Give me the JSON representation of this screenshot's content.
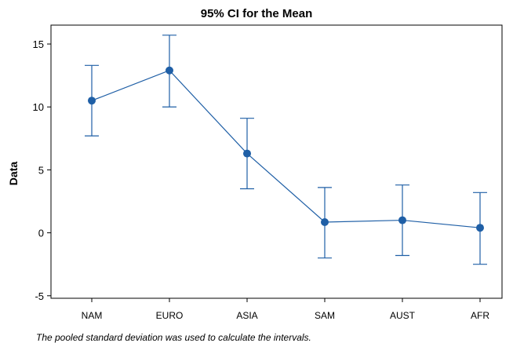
{
  "chart_data": {
    "type": "interval",
    "title": "95% CI for the Mean",
    "xlabel": "",
    "ylabel": "Data",
    "categories": [
      "NAM",
      "EURO",
      "ASIA",
      "SAM",
      "AUST",
      "AFR"
    ],
    "series": [
      {
        "mean": [
          10.5,
          12.9,
          6.3,
          0.85,
          1.0,
          0.4
        ],
        "lower": [
          7.7,
          10.0,
          3.5,
          -2.0,
          -1.8,
          -2.5
        ],
        "upper": [
          13.3,
          15.7,
          9.1,
          3.6,
          3.8,
          3.2
        ]
      }
    ],
    "yticks": [
      -5,
      0,
      5,
      10,
      15
    ],
    "ylim": [
      -5.2,
      16.5
    ],
    "grid": false,
    "color": "#1f5fa6"
  },
  "footnote": "The pooled standard deviation was used to calculate the intervals."
}
